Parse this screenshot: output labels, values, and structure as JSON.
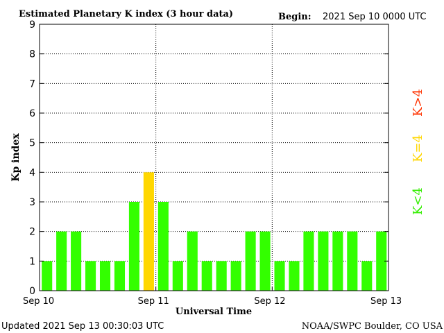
{
  "header": {
    "title": "Estimated Planetary K index (3 hour data)",
    "begin_label": "Begin:",
    "begin_value": "2021 Sep 10 0000 UTC"
  },
  "footer": {
    "updated": "Updated 2021 Sep 13 00:30:03 UTC",
    "source": "NOAA/SWPC Boulder, CO USA"
  },
  "legend": {
    "high": {
      "label": "K>4",
      "color": "#ff3300"
    },
    "mid": {
      "label": "K=4",
      "color": "#ffd700"
    },
    "low": {
      "label": "K<4",
      "color": "#33ee00"
    }
  },
  "chart_data": {
    "type": "bar",
    "title": "Estimated Planetary K index (3 hour data)",
    "xlabel": "Universal Time",
    "ylabel": "Kp index",
    "ylim": [
      0,
      9
    ],
    "yticks": [
      0,
      1,
      2,
      3,
      4,
      5,
      6,
      7,
      8,
      9
    ],
    "xticks": [
      "Sep 10",
      "Sep 11",
      "Sep 12",
      "Sep 13"
    ],
    "grid": true,
    "values": [
      1,
      2,
      2,
      1,
      1,
      1,
      3,
      4,
      3,
      1,
      2,
      1,
      1,
      1,
      2,
      2,
      1,
      1,
      2,
      2,
      2,
      2,
      1,
      2
    ],
    "colors": {
      "below4": "#33ff00",
      "equal4": "#ffd700",
      "above4": "#ff3300"
    }
  }
}
